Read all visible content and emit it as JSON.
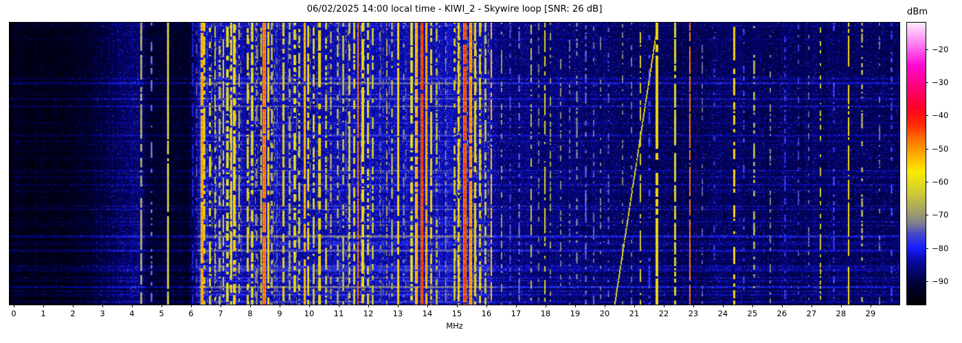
{
  "title": "06/02/2025 14:00 local time - KIWI_2 - Skywire loop [SNR: 26 dB]",
  "axes": {
    "xlabel": "MHz",
    "xtick_labels": [
      "0",
      "1",
      "2",
      "3",
      "4",
      "5",
      "6",
      "7",
      "8",
      "9",
      "10",
      "11",
      "12",
      "13",
      "14",
      "15",
      "16",
      "17",
      "18",
      "19",
      "20",
      "21",
      "22",
      "23",
      "24",
      "25",
      "26",
      "27",
      "28",
      "29"
    ],
    "colorbar_label": "dBm",
    "colorbar_ticks": [
      {
        "value": -20,
        "label": "−20"
      },
      {
        "value": -30,
        "label": "−30"
      },
      {
        "value": -40,
        "label": "−40"
      },
      {
        "value": -50,
        "label": "−50"
      },
      {
        "value": -60,
        "label": "−60"
      },
      {
        "value": -70,
        "label": "−70"
      },
      {
        "value": -80,
        "label": "−80"
      },
      {
        "value": -90,
        "label": "−90"
      }
    ]
  },
  "chart_data": {
    "type": "heatmap",
    "title": "06/02/2025 14:00 local time - KIWI_2 - Skywire loop [SNR: 26 dB]",
    "xlabel": "MHz",
    "ylabel": "",
    "y_axis": "time (no tick labels shown)",
    "snr_db": 26,
    "x_range_mhz": [
      -0.14,
      29.98
    ],
    "value_range_dbm": [
      -97,
      -12
    ],
    "colorbar_tick_values": [
      -20,
      -30,
      -40,
      -50,
      -60,
      -70,
      -80,
      -90
    ],
    "colormap": [
      {
        "t": 0.0,
        "c": "#000000"
      },
      {
        "t": 0.08,
        "c": "#00003c"
      },
      {
        "t": 0.16,
        "c": "#0a0aaa"
      },
      {
        "t": 0.2,
        "c": "#141eff"
      },
      {
        "t": 0.25,
        "c": "#4646c8"
      },
      {
        "t": 0.29,
        "c": "#82828c"
      },
      {
        "t": 0.33,
        "c": "#a0a064"
      },
      {
        "t": 0.4,
        "c": "#d2cd32"
      },
      {
        "t": 0.47,
        "c": "#faeb00"
      },
      {
        "t": 0.52,
        "c": "#ffb900"
      },
      {
        "t": 0.58,
        "c": "#ff7800"
      },
      {
        "t": 0.64,
        "c": "#ff2800"
      },
      {
        "t": 0.7,
        "c": "#ff0028"
      },
      {
        "t": 0.78,
        "c": "#ff0082"
      },
      {
        "t": 0.85,
        "c": "#ff0ad2"
      },
      {
        "t": 0.92,
        "c": "#ff78f0"
      },
      {
        "t": 1.0,
        "c": "#ffebff"
      }
    ],
    "noise_floor_dbm": [
      [
        -0.2,
        -96.5
      ],
      [
        1.8,
        -96.3
      ],
      [
        2.6,
        -94.5
      ],
      [
        3.4,
        -92.0
      ],
      [
        4.0,
        -90.0
      ],
      [
        4.3,
        -89.5
      ],
      [
        4.5,
        -94.5
      ],
      [
        5.9,
        -95.0
      ],
      [
        6.25,
        -88.0
      ],
      [
        7.0,
        -87.0
      ],
      [
        16.1,
        -86.8
      ],
      [
        16.45,
        -89.3
      ],
      [
        19.5,
        -90.3
      ],
      [
        22.5,
        -91.3
      ],
      [
        25.2,
        -91.0
      ],
      [
        28.0,
        -90.8
      ],
      [
        30.1,
        -91.5
      ]
    ],
    "clutter_zone_mhz": [
      6.25,
      16.25
    ],
    "signals_f_level_width_duty": [
      [
        4.31,
        -64,
        0.05,
        0.75
      ],
      [
        4.65,
        -70,
        0.03,
        0.45
      ],
      [
        5.21,
        -60,
        0.05,
        0.92
      ],
      [
        6.04,
        -78,
        0.04,
        0.5
      ],
      [
        6.17,
        -76,
        0.03,
        0.4
      ],
      [
        6.36,
        -50,
        0.05,
        0.95
      ],
      [
        6.44,
        -60,
        0.03,
        0.6
      ],
      [
        6.62,
        -57,
        0.05,
        0.5
      ],
      [
        6.8,
        -62,
        0.04,
        0.45
      ],
      [
        6.95,
        -63,
        0.04,
        0.5
      ],
      [
        7.08,
        -61,
        0.04,
        0.6
      ],
      [
        7.22,
        -59,
        0.05,
        0.7
      ],
      [
        7.35,
        -57,
        0.05,
        0.8
      ],
      [
        7.46,
        -55,
        0.06,
        0.85
      ],
      [
        7.62,
        -64,
        0.04,
        0.5
      ],
      [
        7.9,
        -53,
        0.04,
        0.75
      ],
      [
        8.06,
        -60,
        0.05,
        0.7
      ],
      [
        8.21,
        -68,
        0.05,
        0.55
      ],
      [
        8.36,
        -56,
        0.04,
        0.8
      ],
      [
        8.47,
        -47,
        0.08,
        0.95
      ],
      [
        8.6,
        -54,
        0.04,
        0.8
      ],
      [
        8.72,
        -63,
        0.04,
        0.5
      ],
      [
        9.12,
        -52,
        0.03,
        0.88
      ],
      [
        9.32,
        -64,
        0.05,
        0.55
      ],
      [
        9.5,
        -59,
        0.05,
        0.7
      ],
      [
        9.66,
        -61,
        0.05,
        0.6
      ],
      [
        9.84,
        -50,
        0.05,
        0.9
      ],
      [
        9.96,
        -57,
        0.04,
        0.7
      ],
      [
        10.15,
        -59,
        0.05,
        0.6
      ],
      [
        10.34,
        -54,
        0.06,
        0.8
      ],
      [
        10.55,
        -61,
        0.05,
        0.6
      ],
      [
        10.72,
        -66,
        0.04,
        0.45
      ],
      [
        10.95,
        -64,
        0.05,
        0.5
      ],
      [
        11.15,
        -62,
        0.05,
        0.55
      ],
      [
        11.35,
        -60,
        0.05,
        0.65
      ],
      [
        11.52,
        -58,
        0.05,
        0.7
      ],
      [
        11.64,
        -48,
        0.04,
        0.9
      ],
      [
        11.8,
        -56,
        0.07,
        0.8
      ],
      [
        11.98,
        -58,
        0.06,
        0.7
      ],
      [
        12.14,
        -61,
        0.05,
        0.6
      ],
      [
        12.38,
        -73,
        0.05,
        0.4
      ],
      [
        12.62,
        -68,
        0.04,
        0.45
      ],
      [
        12.8,
        -65,
        0.04,
        0.5
      ],
      [
        13.0,
        -54,
        0.04,
        0.92
      ],
      [
        13.18,
        -69,
        0.04,
        0.4
      ],
      [
        13.45,
        -58,
        0.06,
        0.7
      ],
      [
        13.62,
        -51,
        0.06,
        0.85
      ],
      [
        13.8,
        -42,
        0.07,
        0.97
      ],
      [
        13.96,
        -49,
        0.05,
        0.88
      ],
      [
        14.12,
        -56,
        0.05,
        0.7
      ],
      [
        14.3,
        -63,
        0.05,
        0.5
      ],
      [
        14.6,
        -70,
        0.04,
        0.4
      ],
      [
        14.9,
        -60,
        0.04,
        0.6
      ],
      [
        15.05,
        -56,
        0.05,
        0.8
      ],
      [
        15.25,
        -44,
        0.09,
        0.96
      ],
      [
        15.45,
        -49,
        0.06,
        0.9
      ],
      [
        15.61,
        -54,
        0.05,
        0.85
      ],
      [
        15.77,
        -58,
        0.05,
        0.7
      ],
      [
        15.95,
        -61,
        0.04,
        0.6
      ],
      [
        16.15,
        -54,
        0.04,
        0.7
      ],
      [
        16.5,
        -69,
        0.04,
        0.5
      ],
      [
        16.8,
        -74,
        0.04,
        0.4
      ],
      [
        17.1,
        -71,
        0.04,
        0.4
      ],
      [
        17.5,
        -64,
        0.04,
        0.5
      ],
      [
        17.75,
        -73,
        0.03,
        0.35
      ],
      [
        17.97,
        -61,
        0.04,
        0.6
      ],
      [
        18.15,
        -69,
        0.04,
        0.45
      ],
      [
        18.5,
        -71,
        0.04,
        0.4
      ],
      [
        18.8,
        -73,
        0.03,
        0.35
      ],
      [
        19.05,
        -69,
        0.04,
        0.4
      ],
      [
        19.35,
        -71,
        0.03,
        0.35
      ],
      [
        19.62,
        -73,
        0.03,
        0.3
      ],
      [
        19.85,
        -72,
        0.03,
        0.3
      ],
      [
        20.12,
        -73,
        0.03,
        0.3
      ],
      [
        20.6,
        -72,
        0.03,
        0.3
      ],
      [
        20.9,
        -73,
        0.03,
        0.3
      ],
      [
        21.2,
        -62,
        0.03,
        0.5
      ],
      [
        21.5,
        -76,
        0.06,
        0.45
      ],
      [
        21.76,
        -56,
        0.06,
        0.85
      ],
      [
        22.38,
        -57,
        0.04,
        0.92
      ],
      [
        22.88,
        -48,
        0.02,
        0.8
      ],
      [
        23.3,
        -74,
        0.03,
        0.3
      ],
      [
        23.7,
        -75,
        0.03,
        0.25
      ],
      [
        24.38,
        -54,
        0.04,
        0.55
      ],
      [
        24.7,
        -74,
        0.03,
        0.3
      ],
      [
        25.05,
        -64,
        0.03,
        0.4
      ],
      [
        25.6,
        -71,
        0.03,
        0.35
      ],
      [
        26.1,
        -75,
        0.04,
        0.4
      ],
      [
        26.55,
        -76,
        0.04,
        0.35
      ],
      [
        26.9,
        -74,
        0.03,
        0.35
      ],
      [
        27.3,
        -63,
        0.03,
        0.45
      ],
      [
        27.75,
        -74,
        0.03,
        0.35
      ],
      [
        28.25,
        -57,
        0.03,
        0.75
      ],
      [
        28.7,
        -65,
        0.03,
        0.4
      ],
      [
        29.3,
        -73,
        0.03,
        0.3
      ],
      [
        29.7,
        -74,
        0.03,
        0.3
      ]
    ],
    "chirp": {
      "f_start_mhz": 20.32,
      "f_end_mhz": 21.78,
      "level_dbm": -59,
      "direction": "sweeps up toward top"
    }
  }
}
